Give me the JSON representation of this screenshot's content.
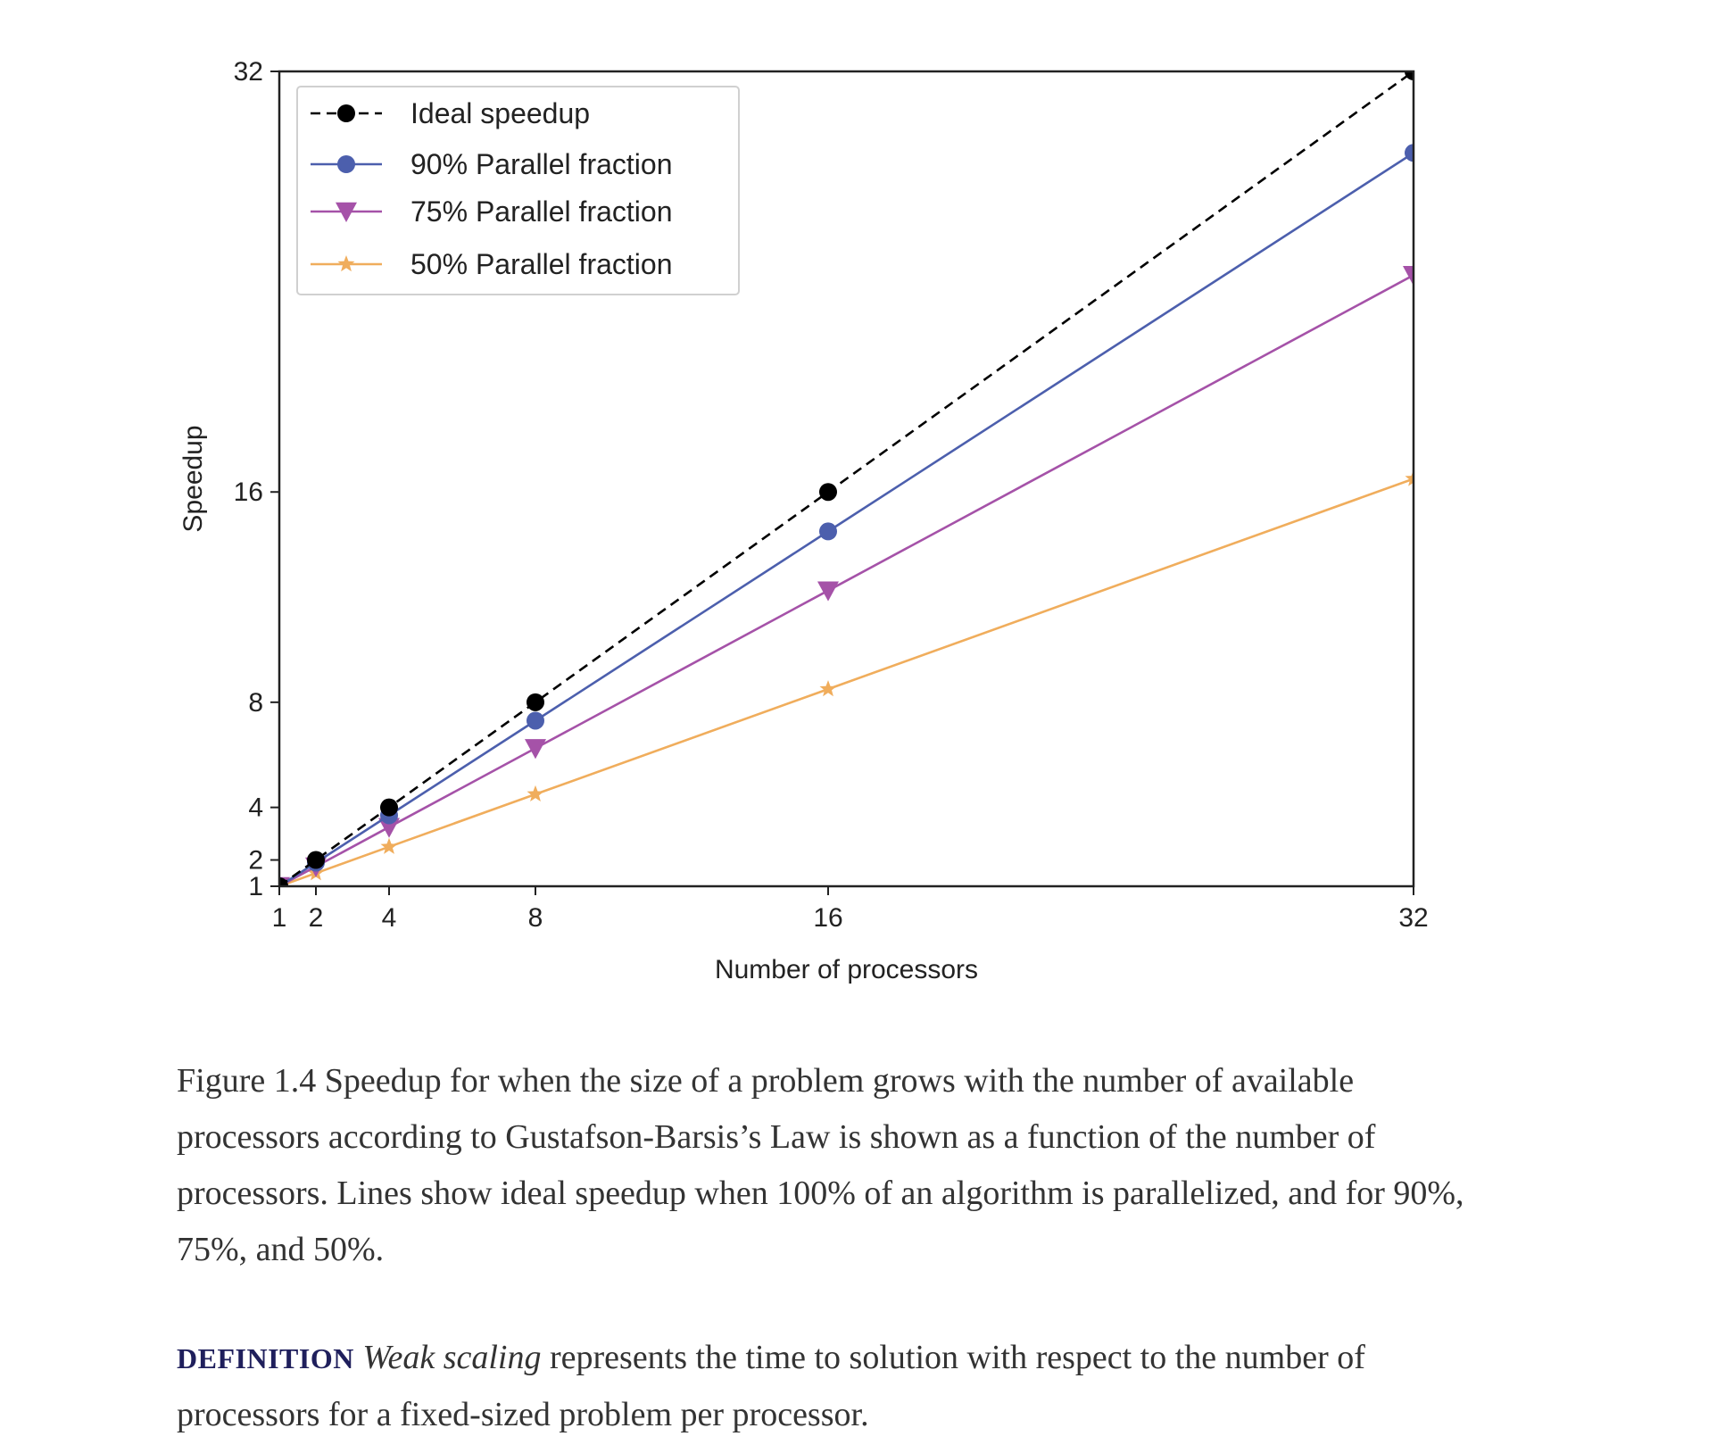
{
  "chart_data": {
    "type": "line",
    "xlabel": "Number of processors",
    "ylabel": "Speedup",
    "x": [
      1,
      2,
      4,
      8,
      16,
      32
    ],
    "x_ticks": [
      1,
      2,
      4,
      8,
      16,
      32
    ],
    "y_ticks": [
      1,
      2,
      4,
      8,
      16,
      32
    ],
    "xlim": [
      1,
      32
    ],
    "ylim": [
      1,
      32
    ],
    "grid": false,
    "legend_position": "top-left",
    "series": [
      {
        "name": "Ideal speedup",
        "values": [
          1,
          2,
          4,
          8,
          16,
          32
        ],
        "color": "#000000",
        "marker": "circle",
        "line_style": "dashed"
      },
      {
        "name": "90% Parallel fraction",
        "values": [
          1,
          1.9,
          3.7,
          7.3,
          14.5,
          28.9
        ],
        "color": "#4c5fad",
        "marker": "circle",
        "line_style": "solid"
      },
      {
        "name": "75% Parallel fraction",
        "values": [
          1,
          1.75,
          3.25,
          6.25,
          12.25,
          24.25
        ],
        "color": "#a552a8",
        "marker": "triangle-down",
        "line_style": "solid"
      },
      {
        "name": "50% Parallel fraction",
        "values": [
          1,
          1.5,
          2.5,
          4.5,
          8.5,
          16.5
        ],
        "color": "#f0ad5c",
        "marker": "star",
        "line_style": "solid"
      }
    ]
  },
  "caption": {
    "text": "Figure 1.4 Speedup for when the size of a problem grows with the number of available processors according to Gustafson-Barsis’s Law is shown as a function of the number of processors. Lines show ideal speedup when 100% of an algorithm is parallelized, and for 90%, 75%, and 50%."
  },
  "definition": {
    "label": "DEFINITION",
    "term": "Weak scaling",
    "text": " represents the time to solution with respect to the number of processors for a fixed-sized problem per processor."
  }
}
